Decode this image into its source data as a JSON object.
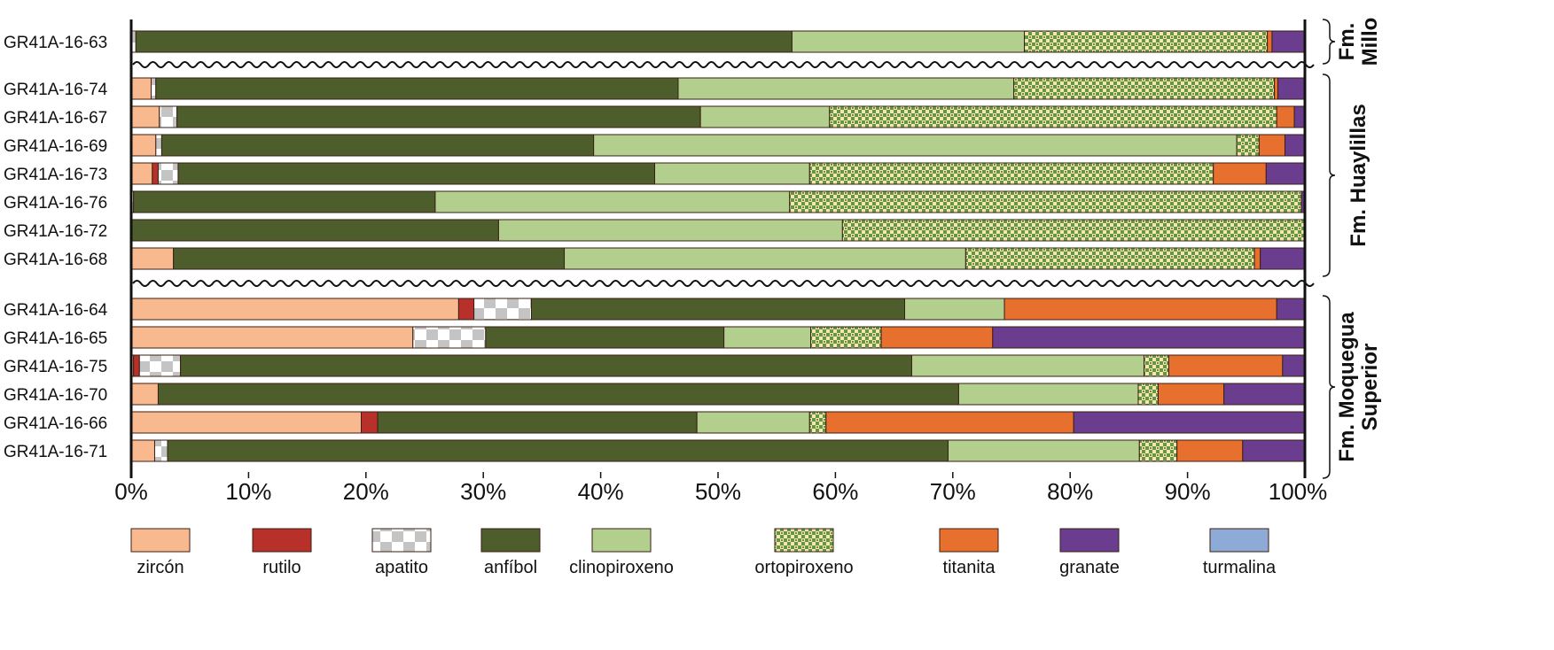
{
  "chart_data": {
    "type": "bar",
    "orientation": "horizontal",
    "stacked": true,
    "title": "",
    "xlabel": "",
    "ylabel": "",
    "xlim": [
      0,
      100
    ],
    "x_ticks": [
      "0%",
      "10%",
      "20%",
      "30%",
      "40%",
      "50%",
      "60%",
      "70%",
      "80%",
      "90%",
      "100%"
    ],
    "legend_placement": "bottom",
    "series": [
      {
        "name": "zircón",
        "color": "#f9b98e",
        "pattern": "solid"
      },
      {
        "name": "rutilo",
        "color": "#b8302a",
        "pattern": "solid"
      },
      {
        "name": "apatito",
        "color": "#c0c0c0",
        "pattern": "checker-gray"
      },
      {
        "name": "anfíbol",
        "color": "#4e5d2c",
        "pattern": "solid"
      },
      {
        "name": "clinopiroxeno",
        "color": "#b3cf8e",
        "pattern": "solid"
      },
      {
        "name": "ortopiroxeno",
        "color": "#6a9440",
        "pattern": "checker-green"
      },
      {
        "name": "titanita",
        "color": "#e8702e",
        "pattern": "solid"
      },
      {
        "name": "granate",
        "color": "#6b3d8e",
        "pattern": "solid"
      },
      {
        "name": "turmalina",
        "color": "#8eaad6",
        "pattern": "solid"
      }
    ],
    "groups": [
      {
        "label": "Fm. Millo",
        "lines": [
          "Fm.",
          "Millo"
        ],
        "rows": [
          0
        ]
      },
      {
        "label": "Fm. Huaylillas",
        "lines": [
          "Fm. Huaylillas"
        ],
        "rows": [
          1,
          2,
          3,
          4,
          5,
          6,
          7
        ]
      },
      {
        "label": "Fm. Moquegua Superior",
        "lines": [
          "Fm. Moquegua",
          "Superior"
        ],
        "rows": [
          8,
          9,
          10,
          11,
          12,
          13
        ]
      }
    ],
    "rows": [
      {
        "label": "GR41A-16-63",
        "values": [
          0,
          0,
          0.4,
          55.9,
          19.8,
          20.7,
          0.4,
          2.8,
          0
        ]
      },
      {
        "label": "GR41A-16-74",
        "values": [
          1.7,
          0,
          0.4,
          44.5,
          28.6,
          22.2,
          0.3,
          2.3,
          0
        ]
      },
      {
        "label": "GR41A-16-67",
        "values": [
          2.4,
          0,
          1.5,
          44.6,
          11.0,
          38.1,
          1.5,
          0.9,
          0
        ]
      },
      {
        "label": "GR41A-16-69",
        "values": [
          2.1,
          0,
          0.5,
          36.8,
          54.8,
          1.9,
          2.2,
          1.7,
          0
        ]
      },
      {
        "label": "GR41A-16-73",
        "values": [
          1.8,
          0.5,
          1.7,
          40.6,
          13.2,
          34.4,
          4.5,
          3.3,
          0
        ]
      },
      {
        "label": "GR41A-16-76",
        "values": [
          0,
          0,
          0.2,
          25.7,
          30.2,
          43.6,
          0,
          0.3,
          0
        ]
      },
      {
        "label": "GR41A-16-72",
        "values": [
          0,
          0,
          0,
          31.3,
          29.3,
          39.4,
          0,
          0,
          0
        ]
      },
      {
        "label": "GR41A-16-68",
        "values": [
          3.6,
          0,
          0,
          33.3,
          34.2,
          24.6,
          0.5,
          3.8,
          0
        ]
      },
      {
        "label": "GR41A-16-64",
        "values": [
          27.9,
          1.3,
          4.9,
          31.8,
          8.5,
          0,
          23.2,
          2.4,
          0
        ]
      },
      {
        "label": "GR41A-16-65",
        "values": [
          24.0,
          0,
          6.2,
          20.3,
          7.4,
          6.0,
          9.5,
          26.6,
          0
        ]
      },
      {
        "label": "GR41A-16-75",
        "values": [
          0.2,
          0.5,
          3.5,
          62.3,
          19.8,
          2.1,
          9.7,
          1.9,
          0
        ]
      },
      {
        "label": "GR41A-16-70",
        "values": [
          2.3,
          0,
          0,
          68.2,
          15.3,
          1.7,
          5.6,
          6.9,
          0
        ]
      },
      {
        "label": "GR41A-16-66",
        "values": [
          19.6,
          1.4,
          0,
          27.2,
          9.6,
          1.4,
          21.1,
          19.7,
          0
        ]
      },
      {
        "label": "GR41A-16-71",
        "values": [
          2.0,
          0,
          1.1,
          66.5,
          16.3,
          3.2,
          5.6,
          5.3,
          0
        ]
      }
    ]
  }
}
